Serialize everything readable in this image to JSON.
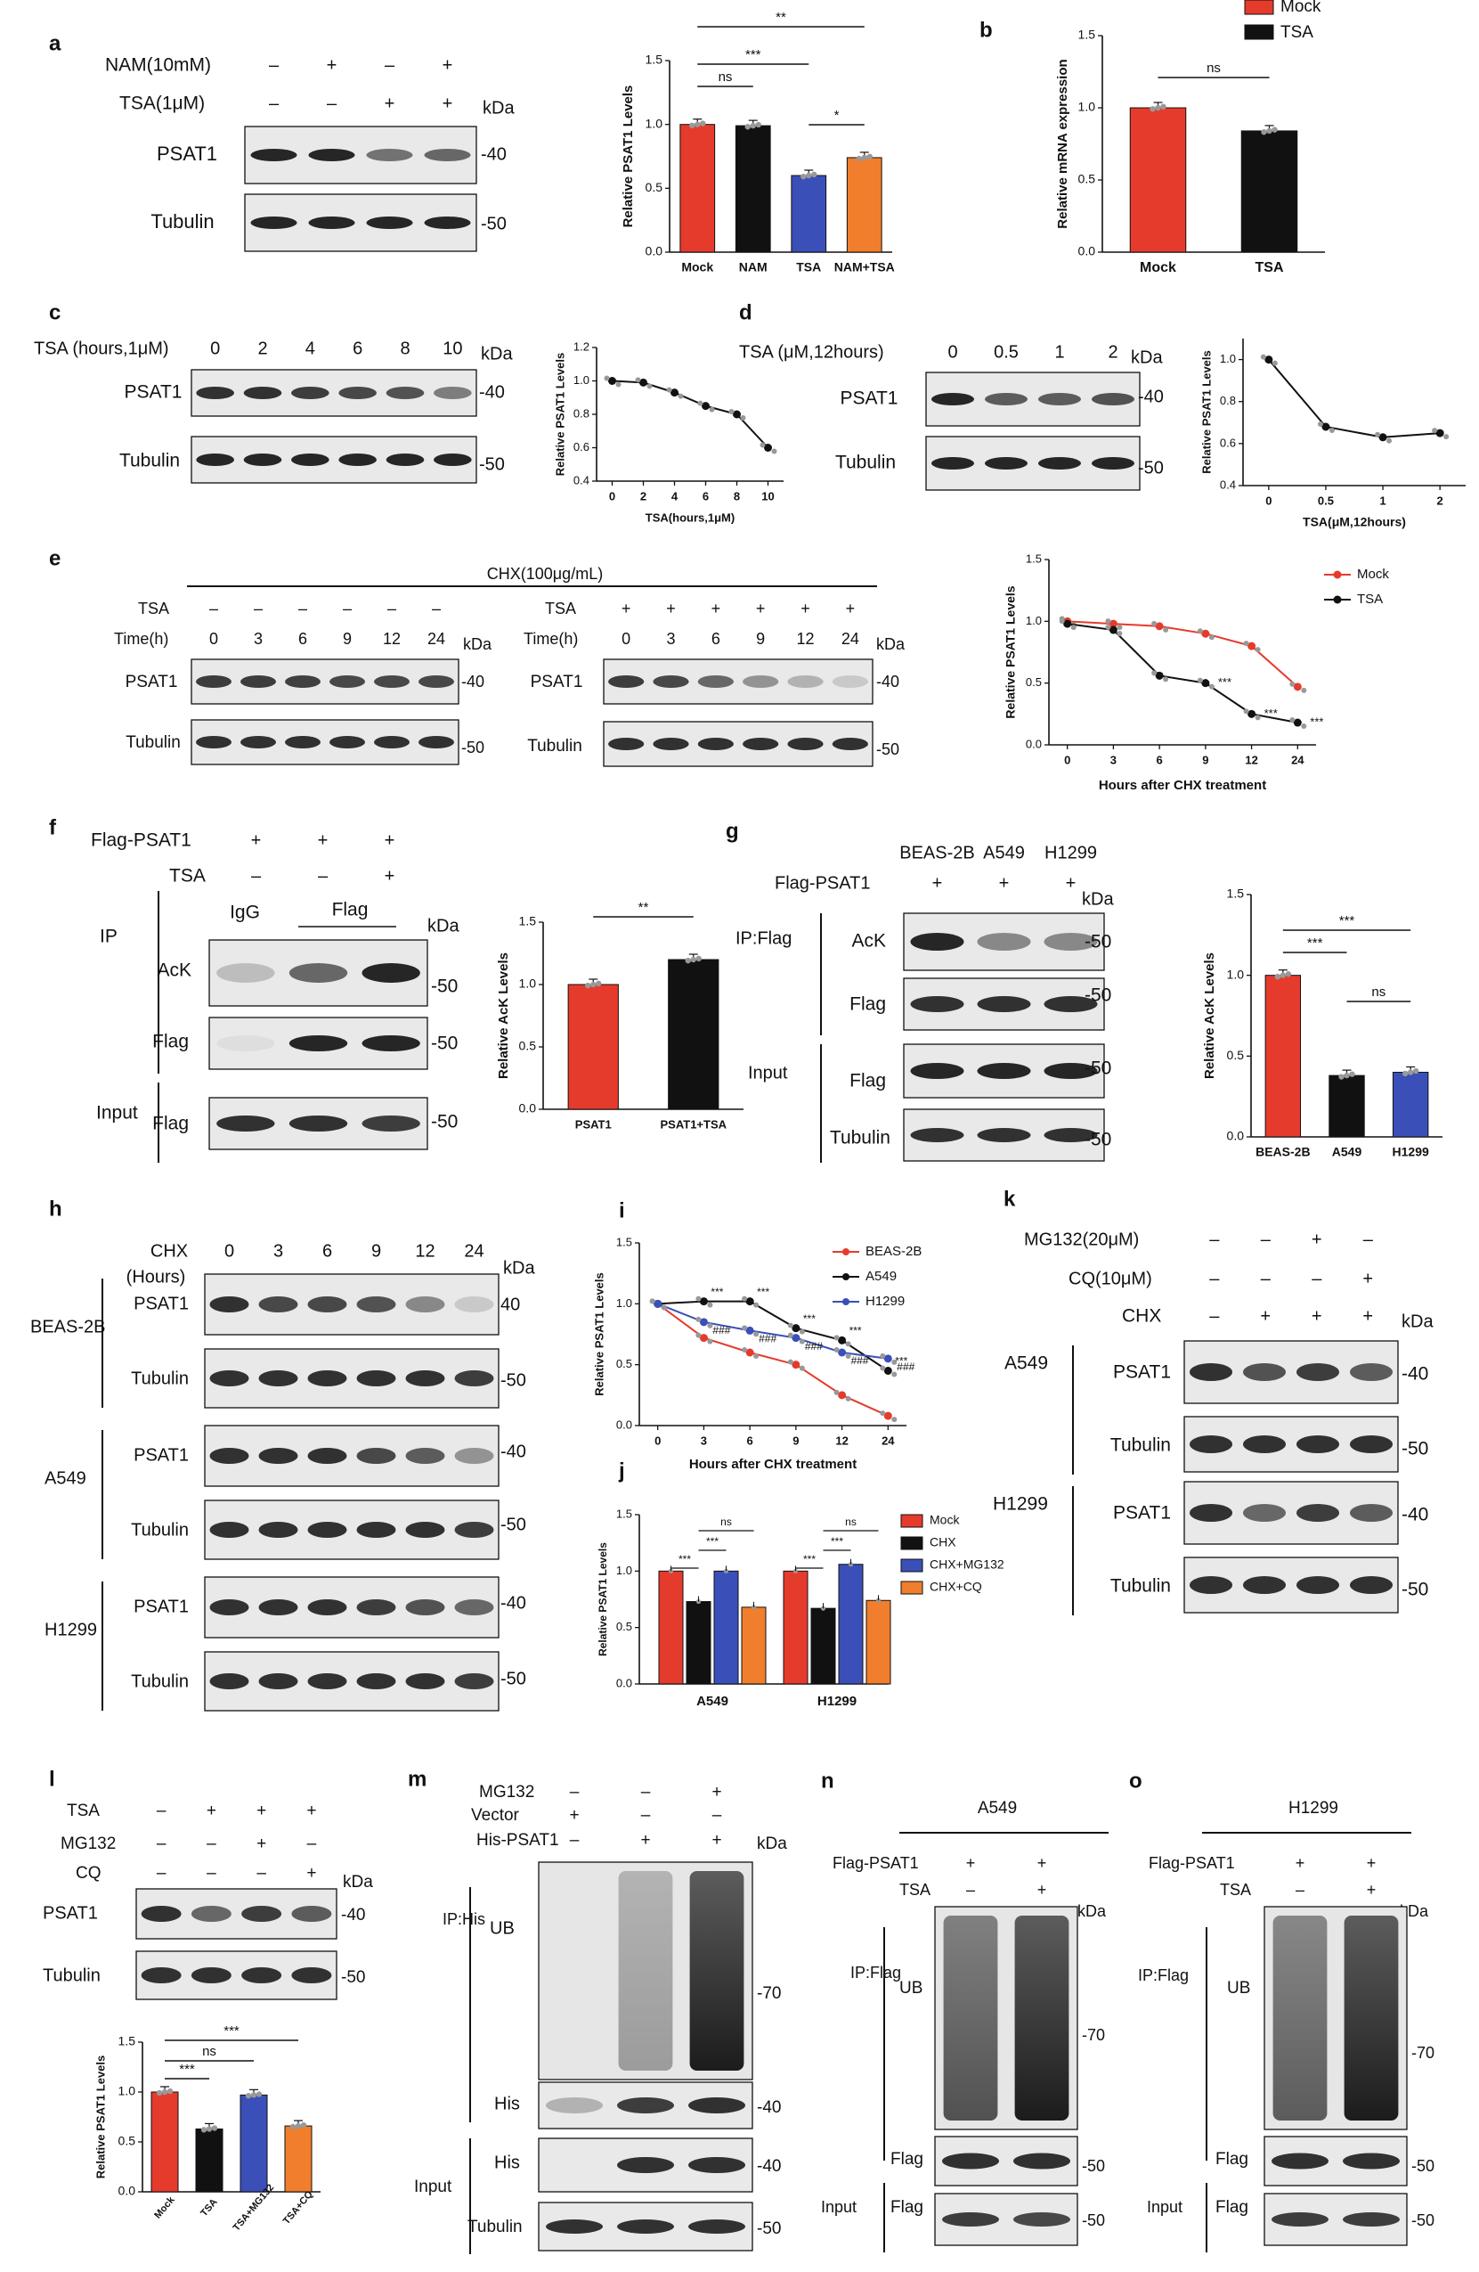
{
  "colors": {
    "red": "#e53b2c",
    "black": "#111111",
    "blue": "#3a4fb8",
    "orange": "#f07e2c",
    "grey": "#999999"
  },
  "panels": {
    "a": {
      "letter": "a",
      "nam_label": "NAM(10mM)",
      "nam_signs": [
        "–",
        "+",
        "–",
        "+"
      ],
      "tsa_label": "TSA(1μM)",
      "tsa_signs": [
        "–",
        "–",
        "+",
        "+"
      ],
      "kda": "kDa",
      "blots": [
        "PSAT1",
        "Tubulin"
      ],
      "markers": [
        "-40",
        "-50"
      ]
    },
    "c": {
      "letter": "c",
      "lanes_label": "TSA (hours,1μM)",
      "lanes": [
        "0",
        "2",
        "4",
        "6",
        "8",
        "10"
      ],
      "kda": "kDa",
      "blots": [
        "PSAT1",
        "Tubulin"
      ],
      "markers": [
        "-40",
        "-50"
      ]
    },
    "d": {
      "letter": "d",
      "lanes_label": "TSA (μM,12hours)",
      "lanes": [
        "0",
        "0.5",
        "1",
        "2"
      ],
      "kda": "kDa",
      "blots": [
        "PSAT1",
        "Tubulin"
      ],
      "markers": [
        "-40",
        "-50"
      ]
    },
    "e": {
      "letter": "e",
      "treatment": "CHX(100μg/mL)",
      "left": {
        "tsa_label": "TSA",
        "tsa_signs": [
          "–",
          "–",
          "–",
          "–",
          "–",
          "–"
        ],
        "time_label": "Time(h)",
        "times": [
          "0",
          "3",
          "6",
          "9",
          "12",
          "24"
        ]
      },
      "right": {
        "tsa_label": "TSA",
        "tsa_signs": [
          "+",
          "+",
          "+",
          "+",
          "+",
          "+"
        ],
        "time_label": "Time(h)",
        "times": [
          "0",
          "3",
          "6",
          "9",
          "12",
          "24"
        ]
      },
      "kda": "kDa",
      "blots": [
        "PSAT1",
        "Tubulin"
      ],
      "markers": [
        "-40",
        "-50"
      ]
    },
    "f": {
      "letter": "f",
      "flag_label": "Flag-PSAT1",
      "flag_signs": [
        "+",
        "+",
        "+"
      ],
      "tsa_label": "TSA",
      "tsa_signs": [
        "–",
        "–",
        "+"
      ],
      "ip": "IP",
      "igg": "IgG",
      "flag": "Flag",
      "input": "Input",
      "kda": "kDa",
      "blots": [
        "AcK",
        "Flag",
        "Flag"
      ],
      "markers": [
        "-50",
        "-50",
        "-50"
      ]
    },
    "g": {
      "letter": "g",
      "lines": [
        "BEAS-2B",
        "A549",
        "H1299"
      ],
      "flag_label": "Flag-PSAT1",
      "flag_signs": [
        "+",
        "+",
        "+"
      ],
      "ip": "IP:Flag",
      "input": "Input",
      "kda": "kDa",
      "blots": [
        "AcK",
        "Flag",
        "Flag",
        "Tubulin"
      ],
      "markers": [
        "-50",
        "-50",
        "-50",
        "-50"
      ]
    },
    "h": {
      "letter": "h",
      "chx_label": "CHX",
      "hours_label": "(Hours)",
      "times": [
        "0",
        "3",
        "6",
        "9",
        "12",
        "24"
      ],
      "lines": [
        "BEAS-2B",
        "A549",
        "H1299"
      ],
      "blots": [
        "PSAT1",
        "Tubulin"
      ],
      "markers": [
        "40",
        "-50",
        "-40",
        "-50",
        "-40",
        "-50"
      ],
      "kda": "kDa"
    },
    "k": {
      "letter": "k",
      "mg_label": "MG132(20μM)",
      "mg_signs": [
        "–",
        "–",
        "+",
        "–"
      ],
      "cq_label": "CQ(10μM)",
      "cq_signs": [
        "–",
        "–",
        "–",
        "+"
      ],
      "chx_label": "CHX",
      "chx_signs": [
        "–",
        "+",
        "+",
        "+"
      ],
      "lines": [
        "A549",
        "H1299"
      ],
      "blots": [
        "PSAT1",
        "Tubulin"
      ],
      "markers": [
        "-40",
        "-50",
        "-40",
        "-50"
      ],
      "kda": "kDa"
    },
    "l": {
      "letter": "l",
      "tsa_label": "TSA",
      "tsa_signs": [
        "–",
        "+",
        "+",
        "+"
      ],
      "mg_label": "MG132",
      "mg_signs": [
        "–",
        "–",
        "+",
        "–"
      ],
      "cq_label": "CQ",
      "cq_signs": [
        "–",
        "–",
        "–",
        "+"
      ],
      "kda": "kDa",
      "blots": [
        "PSAT1",
        "Tubulin"
      ],
      "markers": [
        "-40",
        "-50"
      ]
    },
    "m": {
      "letter": "m",
      "mg_label": "MG132",
      "mg_signs": [
        "–",
        "–",
        "+"
      ],
      "vec_label": "Vector",
      "vec_signs": [
        "+",
        "–",
        "–"
      ],
      "his_label": "His-PSAT1",
      "his_signs": [
        "–",
        "+",
        "+"
      ],
      "ip": "IP:His",
      "input": "Input",
      "kda": "kDa",
      "blots": [
        "UB",
        "His",
        "His",
        "Tubulin"
      ],
      "markers": [
        "-70",
        "-40",
        "-40",
        "-50"
      ]
    },
    "n": {
      "letter": "n",
      "cell": "A549",
      "flag_label": "Flag-PSAT1",
      "flag_signs": [
        "+",
        "+"
      ],
      "tsa_label": "TSA",
      "tsa_signs": [
        "–",
        "+"
      ],
      "ip": "IP:Flag",
      "input": "Input",
      "kda": "kDa",
      "blots": [
        "UB",
        "Flag",
        "Flag"
      ],
      "markers": [
        "-70",
        "-50",
        "-50"
      ]
    },
    "o": {
      "letter": "o",
      "cell": "H1299",
      "flag_label": "Flag-PSAT1",
      "flag_signs": [
        "+",
        "+"
      ],
      "tsa_label": "TSA",
      "tsa_signs": [
        "–",
        "+"
      ],
      "ip": "IP:Flag",
      "input": "Input",
      "kda": "kDa",
      "blots": [
        "UB",
        "Flag",
        "Flag"
      ],
      "markers": [
        "-70",
        "-50",
        "-50"
      ]
    }
  },
  "chart_data": [
    {
      "id": "a",
      "type": "bar",
      "title": "",
      "ylabel": "Relative PSAT1 Levels",
      "xlabel": "",
      "categories": [
        "Mock",
        "NAM",
        "TSA",
        "NAM+TSA"
      ],
      "values": [
        1.0,
        0.99,
        0.6,
        0.74
      ],
      "ylim": [
        0,
        1.5
      ],
      "yticks": [
        "0.0",
        "0.5",
        "1.0",
        "1.5"
      ],
      "colors": [
        "#e53b2c",
        "#111111",
        "#3a4fb8",
        "#f07e2c"
      ],
      "significance": [
        {
          "from": 0,
          "to": 1,
          "label": "ns"
        },
        {
          "from": 0,
          "to": 2,
          "label": "***"
        },
        {
          "from": 2,
          "to": 3,
          "label": "*"
        },
        {
          "from": 0,
          "to": 3,
          "label": "**"
        }
      ]
    },
    {
      "id": "b",
      "type": "bar",
      "title": "",
      "ylabel": "Relative mRNA expression",
      "xlabel": "",
      "categories": [
        "Mock",
        "TSA"
      ],
      "values": [
        1.0,
        0.84
      ],
      "ylim": [
        0,
        1.5
      ],
      "yticks": [
        "0.0",
        "0.5",
        "1.0",
        "1.5"
      ],
      "colors": [
        "#e53b2c",
        "#111111"
      ],
      "legend": [
        "Mock",
        "TSA"
      ],
      "significance": [
        {
          "from": 0,
          "to": 1,
          "label": "ns"
        }
      ]
    },
    {
      "id": "c",
      "type": "line",
      "title": "",
      "ylabel": "Relative PSAT1 Levels",
      "xlabel": "TSA(hours,1μM)",
      "x": [
        "0",
        "2",
        "4",
        "6",
        "8",
        "10"
      ],
      "values": [
        1.0,
        0.99,
        0.93,
        0.85,
        0.8,
        0.6
      ],
      "ylim": [
        0.4,
        1.2
      ],
      "yticks": [
        "0.4",
        "0.6",
        "0.8",
        "1.0",
        "1.2"
      ]
    },
    {
      "id": "d",
      "type": "line",
      "title": "",
      "ylabel": "Relative PSAT1 Levels",
      "xlabel": "TSA(μM,12hours)",
      "x": [
        "0",
        "0.5",
        "1",
        "2"
      ],
      "values": [
        1.0,
        0.68,
        0.63,
        0.65
      ],
      "ylim": [
        0.4,
        1.1
      ],
      "yticks": [
        "0.4",
        "0.6",
        "0.8",
        "1.0"
      ]
    },
    {
      "id": "e",
      "type": "line",
      "title": "",
      "ylabel": "Relative PSAT1 Levels",
      "xlabel": "Hours after CHX treatment",
      "x": [
        "0",
        "3",
        "6",
        "9",
        "12",
        "24"
      ],
      "ylim": [
        0,
        1.5
      ],
      "yticks": [
        "0.0",
        "0.5",
        "1.0",
        "1.5"
      ],
      "series": [
        {
          "name": "Mock",
          "color": "#e53b2c",
          "values": [
            1.0,
            0.98,
            0.96,
            0.9,
            0.8,
            0.47
          ]
        },
        {
          "name": "TSA",
          "color": "#111111",
          "values": [
            0.98,
            0.93,
            0.56,
            0.5,
            0.25,
            0.18
          ]
        }
      ],
      "annotations": [
        "***",
        "***",
        "***"
      ]
    },
    {
      "id": "f",
      "type": "bar",
      "title": "",
      "ylabel": "Relative AcK Levels",
      "xlabel": "",
      "categories": [
        "PSAT1",
        "PSAT1+TSA"
      ],
      "values": [
        1.0,
        1.2
      ],
      "ylim": [
        0,
        1.5
      ],
      "yticks": [
        "0.0",
        "0.5",
        "1.0",
        "1.5"
      ],
      "colors": [
        "#e53b2c",
        "#111111"
      ],
      "significance": [
        {
          "from": 0,
          "to": 1,
          "label": "**"
        }
      ]
    },
    {
      "id": "g",
      "type": "bar",
      "title": "",
      "ylabel": "Relative AcK Levels",
      "xlabel": "",
      "categories": [
        "BEAS-2B",
        "A549",
        "H1299"
      ],
      "values": [
        1.0,
        0.38,
        0.4
      ],
      "ylim": [
        0,
        1.5
      ],
      "yticks": [
        "0.0",
        "0.5",
        "1.0",
        "1.5"
      ],
      "colors": [
        "#e53b2c",
        "#111111",
        "#3a4fb8"
      ],
      "significance": [
        {
          "from": 0,
          "to": 1,
          "label": "***"
        },
        {
          "from": 0,
          "to": 2,
          "label": "***"
        },
        {
          "from": 1,
          "to": 2,
          "label": "ns"
        }
      ]
    },
    {
      "id": "i",
      "type": "line",
      "title": "",
      "ylabel": "Relative PSAT1 Levels",
      "xlabel": "Hours after CHX treatment",
      "x": [
        "0",
        "3",
        "6",
        "9",
        "12",
        "24"
      ],
      "ylim": [
        0,
        1.5
      ],
      "yticks": [
        "0.0",
        "0.5",
        "1.0",
        "1.5"
      ],
      "series": [
        {
          "name": "BEAS-2B",
          "color": "#e53b2c",
          "values": [
            1.0,
            0.72,
            0.6,
            0.5,
            0.25,
            0.08
          ]
        },
        {
          "name": "A549",
          "color": "#111111",
          "values": [
            1.0,
            1.02,
            1.02,
            0.8,
            0.7,
            0.45
          ]
        },
        {
          "name": "H1299",
          "color": "#3a4fb8",
          "values": [
            1.0,
            0.85,
            0.78,
            0.72,
            0.6,
            0.55
          ]
        }
      ],
      "annotations": [
        "***",
        "***",
        "***",
        "***",
        "***",
        "###",
        "###",
        "###",
        "###",
        "###"
      ]
    },
    {
      "id": "j",
      "type": "bar",
      "title": "",
      "ylabel": "Relative PSAT1 Levels",
      "xlabel": "",
      "groups": [
        "A549",
        "H1299"
      ],
      "ylim": [
        0,
        1.5
      ],
      "yticks": [
        "0.0",
        "0.5",
        "1.0",
        "1.5"
      ],
      "series": [
        {
          "name": "Mock",
          "color": "#e53b2c",
          "values": [
            1.0,
            1.0
          ]
        },
        {
          "name": "CHX",
          "color": "#111111",
          "values": [
            0.73,
            0.67
          ]
        },
        {
          "name": "CHX+MG132",
          "color": "#3a4fb8",
          "values": [
            1.0,
            1.06
          ]
        },
        {
          "name": "CHX+CQ",
          "color": "#f07e2c",
          "values": [
            0.68,
            0.74
          ]
        }
      ],
      "significance": [
        "***",
        "***",
        "ns",
        "***",
        "***",
        "ns"
      ]
    },
    {
      "id": "l",
      "type": "bar",
      "title": "",
      "ylabel": "Relative PSAT1 Levels",
      "xlabel": "",
      "categories": [
        "Mock",
        "TSA",
        "TSA+MG132",
        "TSA+CQ"
      ],
      "values": [
        1.0,
        0.63,
        0.97,
        0.66
      ],
      "ylim": [
        0,
        1.5
      ],
      "yticks": [
        "0.0",
        "0.5",
        "1.0",
        "1.5"
      ],
      "colors": [
        "#e53b2c",
        "#111111",
        "#3a4fb8",
        "#f07e2c"
      ],
      "significance": [
        {
          "from": 0,
          "to": 1,
          "label": "***"
        },
        {
          "from": 0,
          "to": 2,
          "label": "ns"
        },
        {
          "from": 0,
          "to": 3,
          "label": "***"
        }
      ]
    }
  ]
}
